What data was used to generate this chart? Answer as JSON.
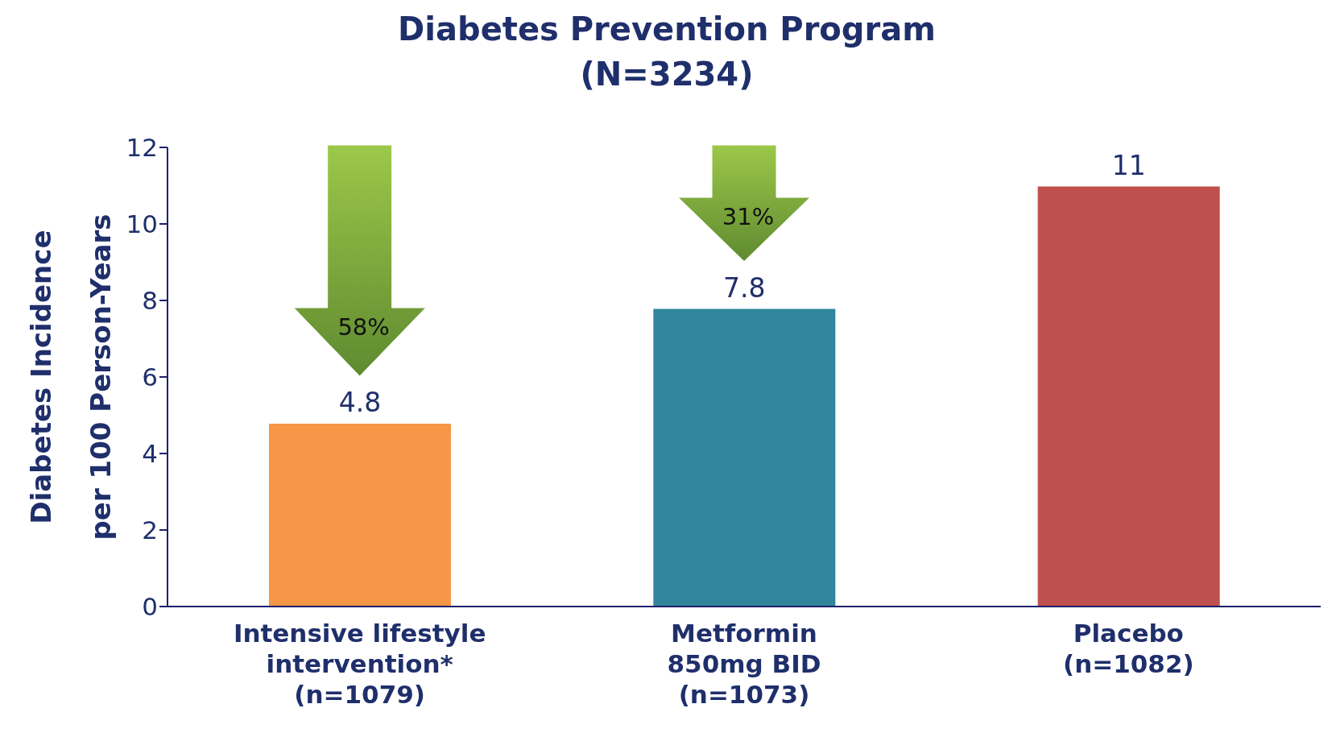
{
  "chart_data": {
    "type": "bar",
    "title": "Diabetes Prevention Program",
    "subtitle": "(N=3234)",
    "ylabel": "Diabetes Incidence\nper 100 Person-Years",
    "categories": [
      "Intensive lifestyle\nintervention*\n(n=1079)",
      "Metformin\n850mg BID\n(n=1073)",
      "Placebo\n(n=1082)"
    ],
    "values": [
      4.8,
      7.8,
      11
    ],
    "colors": [
      "#f79646",
      "#31859c",
      "#c0504d"
    ],
    "ylim": [
      0,
      12
    ],
    "yticks": [
      0,
      2,
      4,
      6,
      8,
      10,
      12
    ],
    "grid": false,
    "legend": false,
    "data_labels": true,
    "annotations": [
      "58%",
      "31%"
    ]
  }
}
